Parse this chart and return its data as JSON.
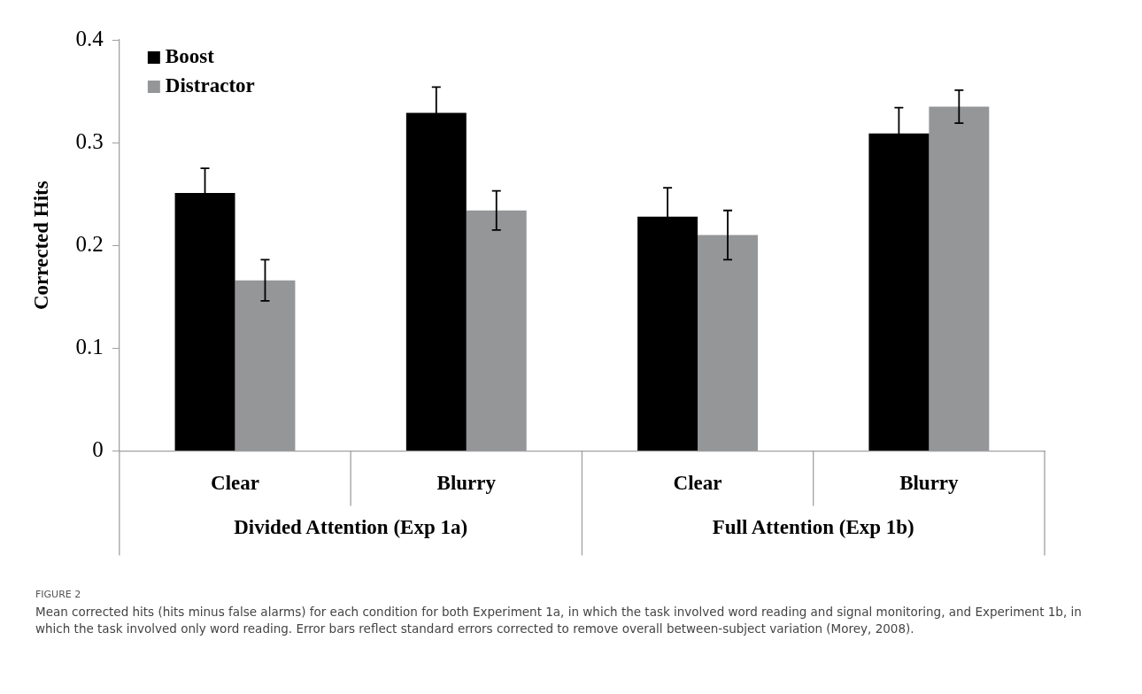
{
  "chart_data": {
    "type": "bar",
    "title": "FIGURE 2",
    "subtitle": "Mean corrected hits (hits minus false alarms) for each condition for both Experiment 1a, in which the task involved word reading and signal monitoring, and Experiment 1b, in which the task involved only word reading. Error bars reflect standard errors corrected to remove overall between-subject variation (Morey, 2008).",
    "ylabel": "Corrected Hits",
    "annotations": [
      "Divided Attention (Exp 1a)",
      "Full Attention (Exp 1b)"
    ],
    "categories": [
      "Clear",
      "Blurry",
      "Clear",
      "Blurry"
    ],
    "ylim": [
      0,
      0.4
    ],
    "yticks": [
      0,
      0.1,
      0.2,
      0.3,
      0.4
    ],
    "legend": "top left",
    "series": [
      {
        "name": "Boost",
        "color": "#000000",
        "values": [
          0.251,
          0.329,
          0.228,
          0.309
        ],
        "errors": [
          0.024,
          0.025,
          0.028,
          0.025
        ]
      },
      {
        "name": "Distractor",
        "color": "#959698",
        "values": [
          0.166,
          0.234,
          0.21,
          0.335
        ],
        "errors": [
          0.02,
          0.019,
          0.024,
          0.016
        ]
      }
    ]
  }
}
